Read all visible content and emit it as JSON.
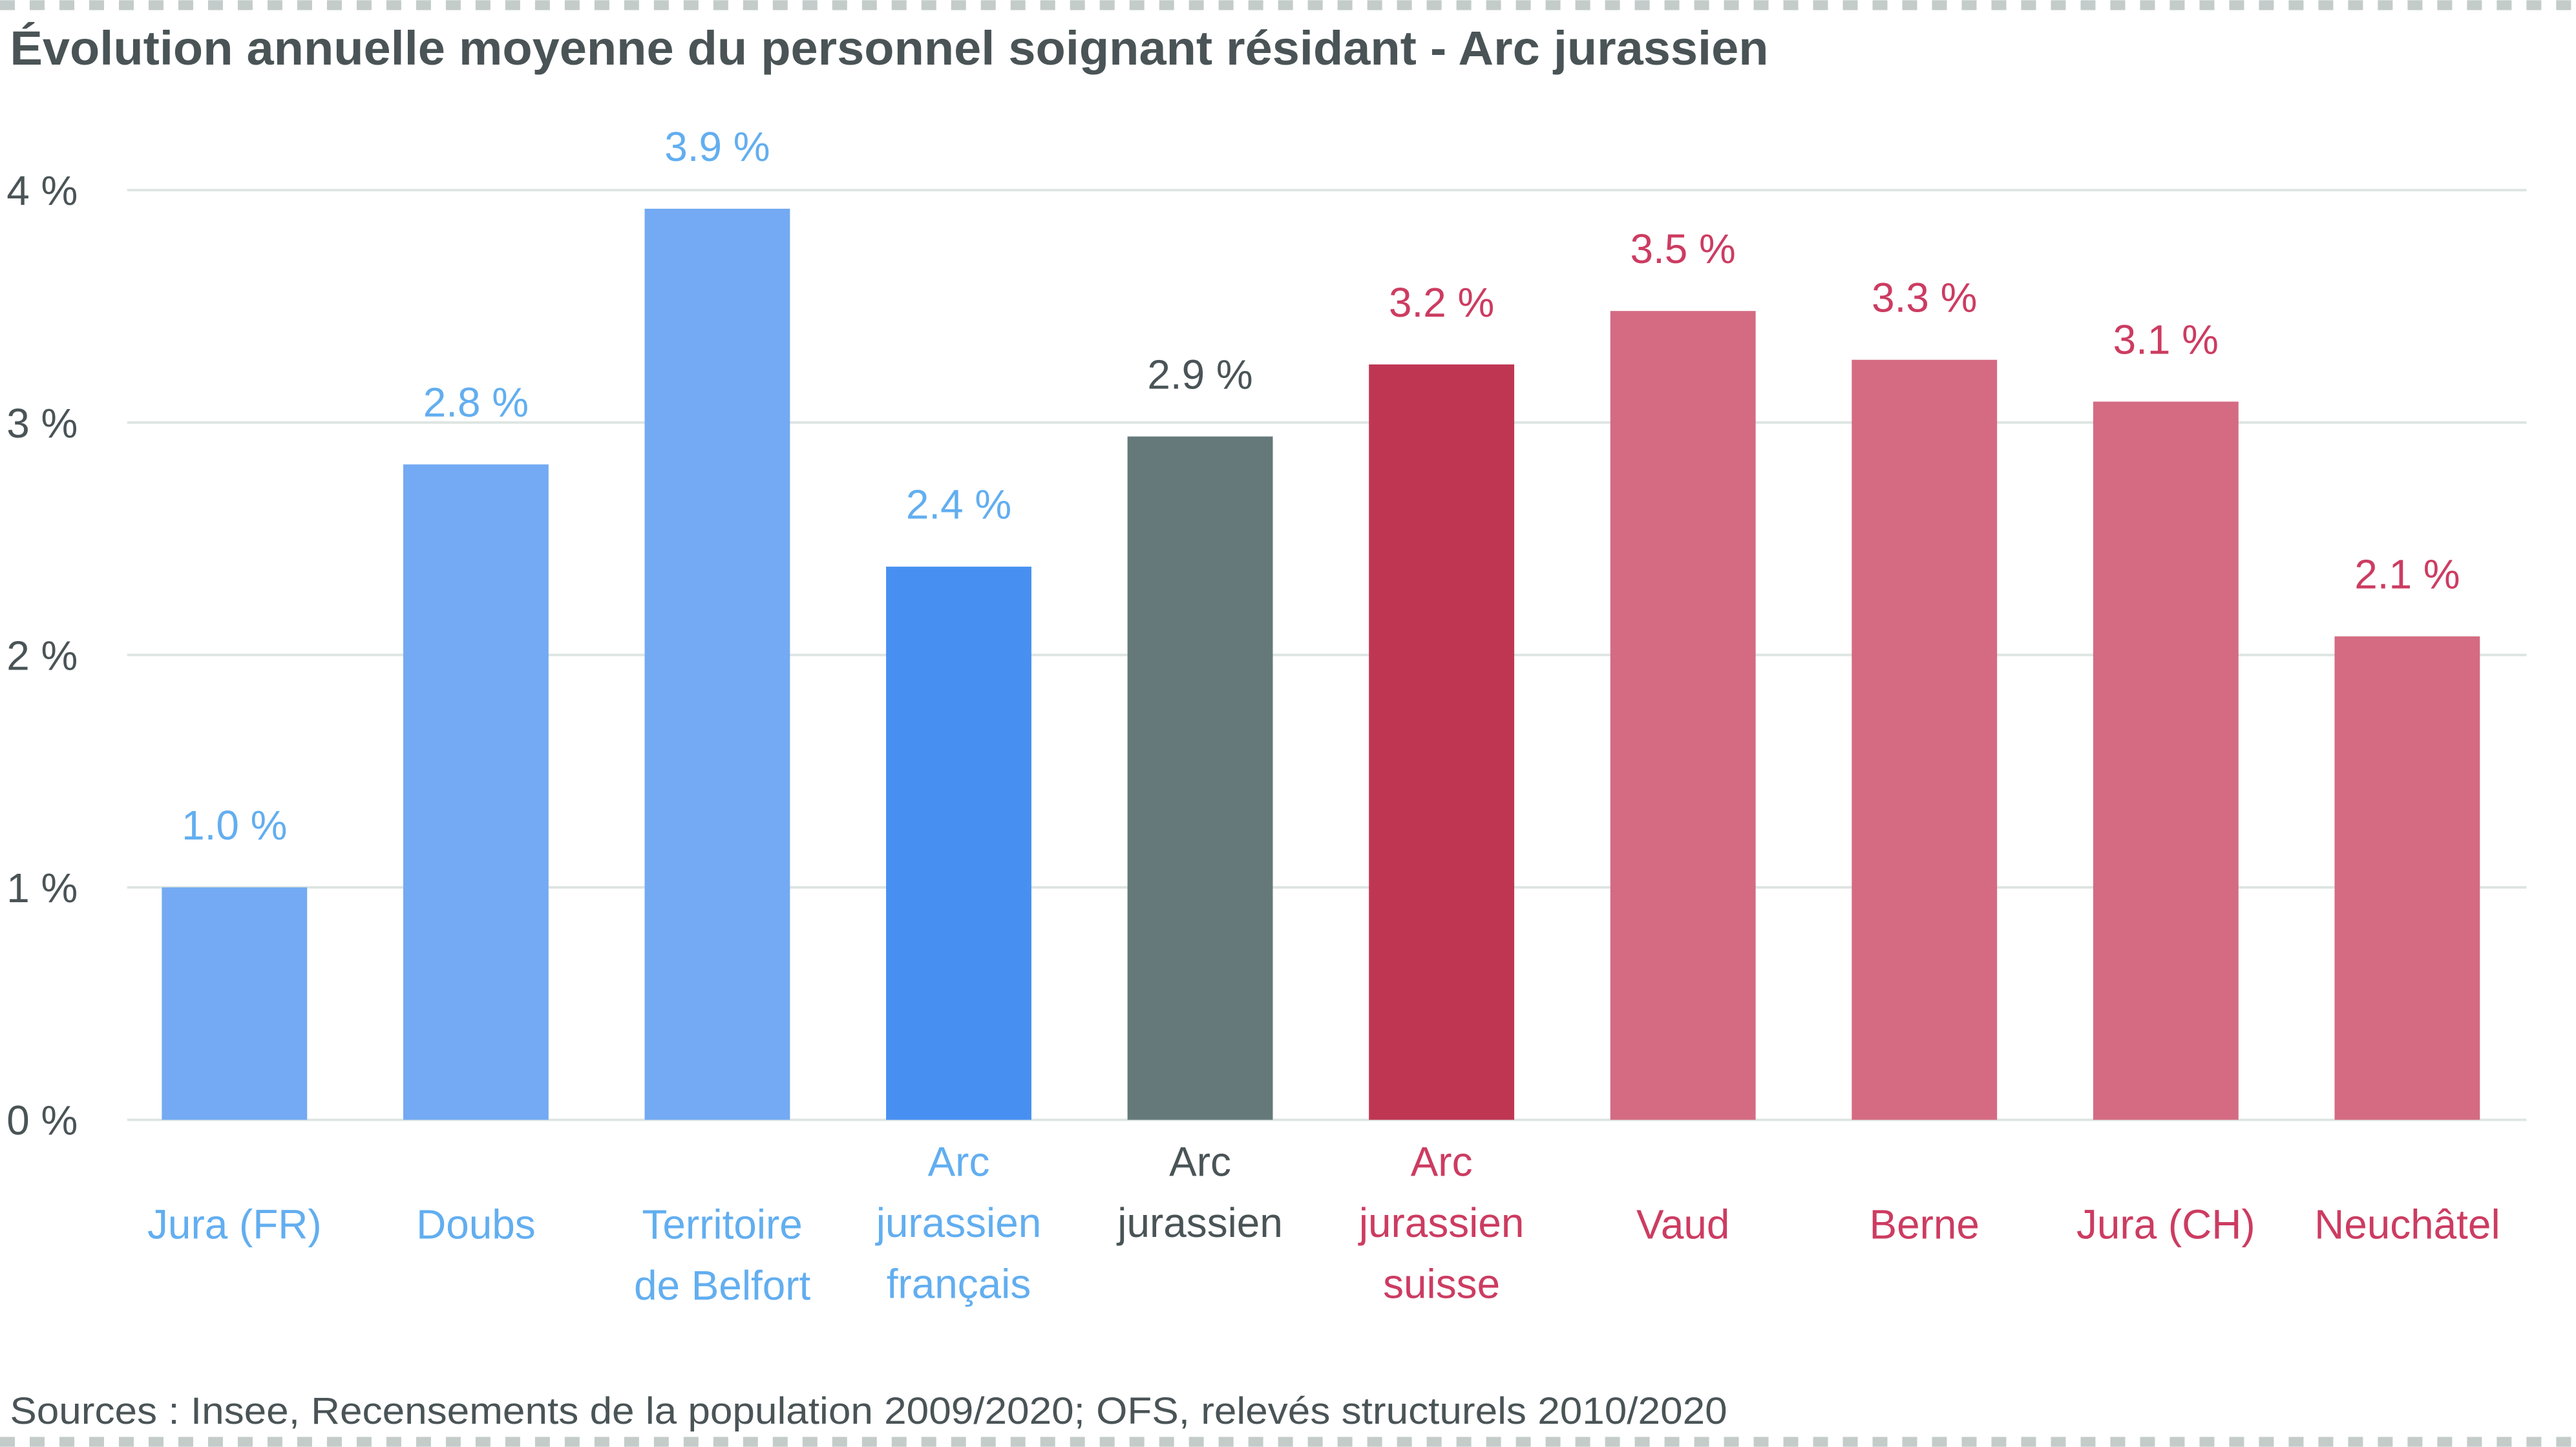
{
  "chart_data": {
    "type": "bar",
    "title": "Évolution annuelle moyenne du personnel soignant résidant - Arc jurassien",
    "xlabel": "",
    "ylabel": "",
    "ylim": [
      0,
      4
    ],
    "yticks": [
      0,
      1,
      2,
      3,
      4
    ],
    "ytick_labels": [
      "0 %",
      "1 %",
      "2 %",
      "3 %",
      "4 %"
    ],
    "grid": true,
    "categories": [
      [
        "Jura (FR)"
      ],
      [
        "Doubs"
      ],
      [
        "Territoire",
        "de Belfort"
      ],
      [
        "Arc",
        "jurassien",
        "français"
      ],
      [
        "Arc",
        "jurassien"
      ],
      [
        "Arc",
        "jurassien",
        "suisse"
      ],
      [
        "Vaud"
      ],
      [
        "Berne"
      ],
      [
        "Jura (CH)"
      ],
      [
        "Neuchâtel"
      ]
    ],
    "values": [
      1.0,
      2.82,
      3.92,
      2.38,
      2.94,
      3.25,
      3.48,
      3.27,
      3.09,
      2.08
    ],
    "data_labels": [
      "1.0 %",
      "2.8 %",
      "3.9 %",
      "2.4 %",
      "2.9 %",
      "3.2 %",
      "3.5 %",
      "3.3 %",
      "3.1 %",
      "2.1 %"
    ],
    "bar_colors": [
      "#73aaf3",
      "#73aaf3",
      "#73aaf3",
      "#4790f2",
      "#65797a",
      "#bf3653",
      "#d46b82",
      "#d46b82",
      "#d46b82",
      "#d46b82"
    ],
    "text_colors": [
      "#62aef0",
      "#62aef0",
      "#62aef0",
      "#62aef0",
      "#4a5457",
      "#cc3c61",
      "#cc3c61",
      "#cc3c61",
      "#cc3c61",
      "#cc3c61"
    ],
    "source": "Sources : Insee, Recensements de la population 2009/2020; OFS,  relevés structurels 2010/2020"
  }
}
